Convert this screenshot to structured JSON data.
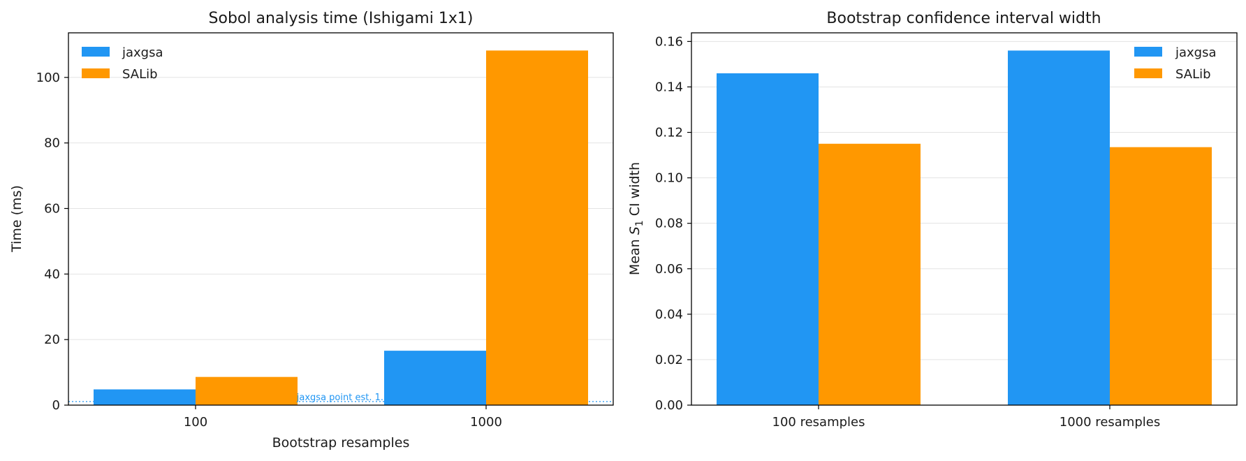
{
  "colors": {
    "jaxgsa": "#2196F3",
    "salib": "#FF9800"
  },
  "chart_data": [
    {
      "type": "bar",
      "title": "Sobol analysis time (Ishigami 1x1)",
      "xlabel": "Bootstrap resamples",
      "ylabel": "Time (ms)",
      "categories": [
        "100",
        "1000"
      ],
      "series": [
        {
          "name": "jaxgsa",
          "values": [
            4.8,
            16.6
          ]
        },
        {
          "name": "SALib",
          "values": [
            8.6,
            108.2
          ]
        }
      ],
      "ylim": [
        0,
        113.6
      ],
      "yticks": [
        0,
        20,
        40,
        60,
        80,
        100
      ],
      "grid": "y",
      "legend": "top-left",
      "reference_line": {
        "value": 1.1,
        "label": "jaxgsa point est. 1.",
        "style": "dotted"
      }
    },
    {
      "type": "bar",
      "title": "Bootstrap confidence interval width",
      "xlabel": "",
      "ylabel_prefix": "Mean ",
      "ylabel_symbol": "S",
      "ylabel_subscript": "1",
      "ylabel_suffix": " CI width",
      "categories": [
        "100 resamples",
        "1000 resamples"
      ],
      "series": [
        {
          "name": "jaxgsa",
          "values": [
            0.146,
            0.156
          ]
        },
        {
          "name": "SALib",
          "values": [
            0.115,
            0.1135
          ]
        }
      ],
      "ylim": [
        0,
        0.1638
      ],
      "yticks": [
        "0.00",
        "0.02",
        "0.04",
        "0.06",
        "0.08",
        "0.10",
        "0.12",
        "0.14",
        "0.16"
      ],
      "grid": "y",
      "legend": "top-right"
    }
  ]
}
